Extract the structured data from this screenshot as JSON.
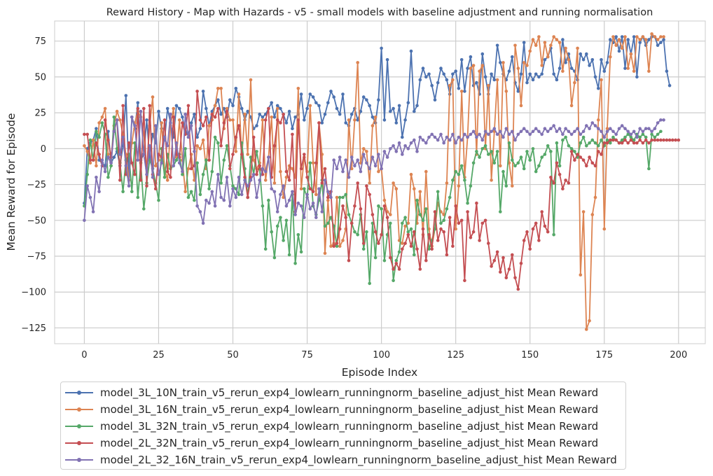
{
  "chart_data": {
    "type": "line",
    "title": "Reward History - Map with Hazards - v5 - small models with baseline adjustment and running normalisation",
    "xlabel": "Episode Index",
    "ylabel": "Mean Reward for Episode",
    "xlim": [
      -10,
      209
    ],
    "ylim": [
      -136,
      89
    ],
    "xticks": [
      0,
      25,
      50,
      75,
      100,
      125,
      150,
      175,
      200
    ],
    "yticks": [
      -125,
      -100,
      -75,
      -50,
      -25,
      0,
      25,
      50,
      75
    ],
    "grid": true,
    "legend_position": "below",
    "series": [
      {
        "name": "model_3L_10N_train_v5_rerun_exp4_lowlearn_runningnorm_baseline_adjust_hist Mean Reward",
        "color": "#4c72b0",
        "values": [
          -38,
          0,
          4,
          6,
          14,
          -8,
          -10,
          -12,
          12,
          -10,
          -6,
          -2,
          -12,
          2,
          37,
          -18,
          22,
          14,
          32,
          -8,
          -4,
          20,
          -6,
          10,
          4,
          26,
          14,
          6,
          28,
          18,
          8,
          30,
          28,
          22,
          12,
          10,
          18,
          24,
          8,
          14,
          40,
          28,
          16,
          26,
          30,
          34,
          24,
          28,
          22,
          34,
          30,
          42,
          36,
          28,
          20,
          26,
          22,
          14,
          16,
          24,
          22,
          24,
          28,
          32,
          22,
          30,
          28,
          24,
          18,
          26,
          14,
          22,
          24,
          38,
          20,
          28,
          38,
          36,
          32,
          30,
          18,
          24,
          32,
          40,
          36,
          28,
          24,
          38,
          18,
          16,
          24,
          28,
          20,
          26,
          36,
          34,
          30,
          22,
          18,
          34,
          70,
          20,
          62,
          26,
          28,
          18,
          30,
          8,
          20,
          32,
          68,
          26,
          30,
          48,
          56,
          50,
          52,
          44,
          34,
          46,
          56,
          52,
          48,
          38,
          52,
          54,
          42,
          62,
          40,
          56,
          64,
          44,
          46,
          38,
          66,
          50,
          38,
          52,
          48,
          72,
          60,
          52,
          48,
          54,
          64,
          46,
          40,
          52,
          74,
          46,
          52,
          48,
          52,
          50,
          52,
          62,
          64,
          70,
          52,
          48,
          56,
          76,
          60,
          66,
          56,
          54,
          48,
          66,
          62,
          66,
          58,
          62,
          50,
          42,
          62,
          54,
          60,
          76,
          74,
          78,
          68,
          78,
          56,
          76,
          66,
          78,
          50,
          74,
          78,
          72,
          76,
          78,
          78,
          72,
          74,
          76,
          54,
          44
        ]
      },
      {
        "name": "model_3L_16N_train_v5_rerun_exp4_lowlearn_runningnorm_baseline_adjust_hist Mean Reward",
        "color": "#dd8452",
        "values": [
          2,
          -2,
          -10,
          6,
          -12,
          18,
          22,
          28,
          -4,
          -12,
          16,
          26,
          20,
          10,
          -4,
          -22,
          4,
          18,
          26,
          22,
          10,
          -14,
          16,
          36,
          -12,
          -8,
          18,
          -14,
          -22,
          16,
          28,
          -6,
          20,
          -8,
          -30,
          -14,
          -4,
          -22,
          2,
          0,
          6,
          -14,
          16,
          20,
          30,
          42,
          42,
          14,
          28,
          20,
          20,
          -2,
          38,
          -6,
          24,
          -4,
          48,
          -8,
          -14,
          -10,
          20,
          -22,
          -6,
          22,
          -24,
          28,
          -16,
          -34,
          -20,
          -12,
          -14,
          -20,
          42,
          -28,
          -6,
          -16,
          30,
          -10,
          -32,
          18,
          -4,
          -73,
          -36,
          -68,
          -66,
          -34,
          -68,
          -64,
          -56,
          20,
          -14,
          20,
          60,
          -10,
          0,
          -2,
          -24,
          16,
          22,
          -16,
          -14,
          -36,
          -44,
          -46,
          -24,
          -28,
          -64,
          -66,
          -54,
          -52,
          -18,
          -28,
          -52,
          -30,
          -60,
          -16,
          -56,
          -68,
          -56,
          -38,
          -44,
          -46,
          -24,
          44,
          48,
          -56,
          -26,
          40,
          -20,
          8,
          56,
          58,
          -4,
          54,
          58,
          0,
          44,
          -22,
          12,
          48,
          -12,
          60,
          40,
          -10,
          -26,
          72,
          56,
          30,
          60,
          58,
          68,
          76,
          72,
          78,
          58,
          74,
          64,
          72,
          78,
          76,
          74,
          54,
          70,
          62,
          30,
          46,
          70,
          -88,
          -44,
          -126,
          -120,
          -46,
          -34,
          20,
          48,
          -56,
          14,
          64,
          78,
          72,
          76,
          70,
          78,
          56,
          66,
          54,
          78,
          76,
          78,
          76,
          54,
          80,
          78,
          76,
          78,
          78
        ]
      },
      {
        "name": "model_3L_32N_train_v5_rerun_exp4_lowlearn_runningnorm_baseline_adjust_hist Mean Reward",
        "color": "#55a868",
        "values": [
          -40,
          -18,
          6,
          -8,
          12,
          8,
          18,
          10,
          -20,
          -12,
          22,
          0,
          -10,
          -30,
          -8,
          -4,
          -30,
          4,
          -34,
          -10,
          -42,
          -24,
          -8,
          -14,
          -24,
          -36,
          0,
          -20,
          -4,
          -14,
          -12,
          -8,
          -4,
          -18,
          0,
          -34,
          -30,
          -36,
          -10,
          -32,
          -18,
          -8,
          -28,
          -16,
          8,
          4,
          -24,
          -8,
          2,
          -12,
          -26,
          -28,
          -32,
          4,
          -14,
          -34,
          -6,
          -18,
          -2,
          -14,
          -40,
          -70,
          -36,
          -58,
          -76,
          -54,
          -48,
          -64,
          -50,
          -74,
          -32,
          -80,
          -60,
          -72,
          -28,
          -34,
          -10,
          -40,
          -46,
          -36,
          -22,
          -54,
          -52,
          -48,
          -54,
          -68,
          -34,
          -34,
          -32,
          -46,
          -52,
          -58,
          -60,
          -46,
          -70,
          -58,
          -94,
          -52,
          -76,
          -40,
          -42,
          -78,
          -60,
          -52,
          -92,
          -78,
          -72,
          -52,
          -48,
          -58,
          -56,
          -74,
          -36,
          -46,
          -50,
          -42,
          -70,
          -64,
          -56,
          -30,
          -52,
          -50,
          -42,
          -34,
          -22,
          -16,
          -18,
          -12,
          -22,
          -38,
          -26,
          -10,
          -2,
          -6,
          0,
          2,
          -4,
          -2,
          -10,
          -2,
          -44,
          -16,
          -26,
          4,
          -8,
          -12,
          -10,
          -6,
          -14,
          -2,
          -8,
          0,
          -16,
          -12,
          -6,
          -4,
          2,
          -2,
          -60,
          4,
          -12,
          6,
          8,
          2,
          0,
          -2,
          -6,
          4,
          8,
          2,
          4,
          6,
          4,
          2,
          6,
          2,
          6,
          4,
          8,
          6,
          4,
          6,
          8,
          10,
          8,
          6,
          10,
          8,
          10,
          8,
          -14,
          10,
          8,
          10,
          12
        ]
      },
      {
        "name": "model_2L_32N_train_v5_rerun_exp4_lowlearn_runningnorm_baseline_adjust_hist Mean Reward",
        "color": "#c44e52",
        "values": [
          10,
          10,
          -8,
          -8,
          4,
          -4,
          -12,
          20,
          6,
          -6,
          12,
          20,
          -22,
          30,
          -18,
          4,
          -10,
          -18,
          28,
          -22,
          28,
          -26,
          30,
          -18,
          -28,
          -4,
          -6,
          20,
          -16,
          -20,
          22,
          -4,
          -6,
          18,
          10,
          30,
          -14,
          -12,
          40,
          20,
          16,
          22,
          -8,
          24,
          22,
          28,
          2,
          18,
          26,
          -14,
          -4,
          8,
          16,
          -4,
          -20,
          -34,
          -20,
          8,
          -18,
          -12,
          -18,
          20,
          28,
          -20,
          2,
          20,
          18,
          24,
          -16,
          -22,
          10,
          -44,
          20,
          -14,
          -4,
          -20,
          -28,
          -30,
          -10,
          18,
          -24,
          -14,
          -34,
          -30,
          -68,
          -66,
          -56,
          -40,
          -48,
          -78,
          -52,
          -40,
          -24,
          -42,
          -66,
          -26,
          -32,
          -46,
          -58,
          -66,
          -60,
          -40,
          -48,
          -76,
          -84,
          -80,
          -84,
          -70,
          -66,
          -60,
          -68,
          -58,
          -70,
          -84,
          -56,
          -78,
          -60,
          -70,
          -44,
          -64,
          -56,
          -58,
          -74,
          -48,
          -68,
          -40,
          -52,
          -50,
          -92,
          -44,
          -62,
          -58,
          -38,
          -64,
          -52,
          -50,
          -66,
          -82,
          -78,
          -72,
          -86,
          -76,
          -90,
          -84,
          -74,
          -90,
          -98,
          -80,
          -64,
          -58,
          -70,
          -56,
          -52,
          -64,
          -44,
          -54,
          -58,
          -20,
          -24,
          -10,
          -18,
          -28,
          -22,
          -24,
          -2,
          -8,
          -4,
          -6,
          -8,
          -12,
          -6,
          -10,
          -12,
          -2,
          -4,
          4,
          4,
          6,
          6,
          6,
          4,
          4,
          6,
          4,
          6,
          4,
          4,
          6,
          4,
          6,
          4,
          6,
          6,
          6,
          6,
          6,
          6,
          6,
          6,
          6,
          6
        ]
      },
      {
        "name": "model_2L_32_16N_train_v5_rerun_exp4_lowlearn_runningnorm_baseline_adjust_hist Mean Reward",
        "color": "#8172b3",
        "values": [
          -50,
          -26,
          -34,
          -44,
          -20,
          -30,
          -8,
          -16,
          -6,
          -10,
          12,
          20,
          -4,
          8,
          -12,
          -26,
          22,
          16,
          -8,
          26,
          -4,
          -18,
          2,
          -20,
          16,
          -18,
          -10,
          8,
          2,
          24,
          -12,
          4,
          -10,
          -16,
          24,
          8,
          16,
          -2,
          -40,
          -44,
          -52,
          -36,
          -38,
          -30,
          -40,
          -18,
          -34,
          -36,
          -20,
          -40,
          -28,
          -34,
          -20,
          -32,
          -22,
          -26,
          -22,
          -18,
          -34,
          -22,
          -14,
          -16,
          -6,
          -28,
          -30,
          -44,
          -32,
          -26,
          -40,
          -36,
          -30,
          -46,
          -38,
          -40,
          -48,
          -32,
          -42,
          -38,
          -48,
          -28,
          -44,
          -22,
          -30,
          -34,
          -8,
          -14,
          -6,
          -16,
          -8,
          -20,
          -6,
          -12,
          -8,
          -16,
          -4,
          -10,
          -14,
          -6,
          -12,
          -4,
          -14,
          -2,
          -6,
          0,
          2,
          -2,
          4,
          -4,
          2,
          0,
          4,
          6,
          -2,
          8,
          6,
          4,
          8,
          10,
          8,
          6,
          10,
          4,
          8,
          6,
          10,
          4,
          8,
          6,
          10,
          8,
          10,
          12,
          8,
          10,
          6,
          12,
          10,
          12,
          14,
          10,
          12,
          8,
          14,
          10,
          12,
          6,
          10,
          12,
          14,
          12,
          10,
          12,
          14,
          12,
          10,
          14,
          12,
          14,
          16,
          12,
          14,
          10,
          14,
          12,
          10,
          12,
          14,
          10,
          12,
          16,
          14,
          18,
          16,
          14,
          12,
          8,
          12,
          14,
          12,
          10,
          14,
          16,
          14,
          12,
          10,
          12,
          8,
          14,
          12,
          14,
          14,
          12,
          14,
          18,
          20,
          20
        ]
      }
    ]
  }
}
